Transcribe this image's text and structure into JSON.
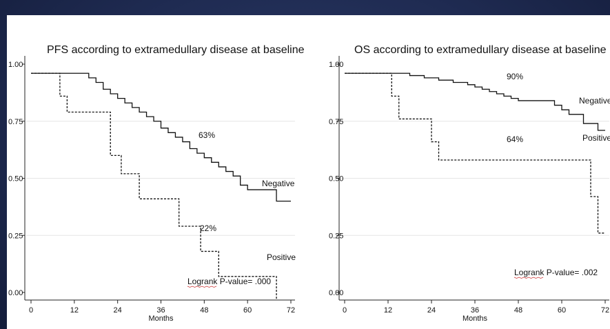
{
  "chart_data": [
    {
      "type": "line",
      "title": "PFS according to extramedullary disease at baseline",
      "xlabel": "Months",
      "ylabel": "",
      "xlim": [
        0,
        72
      ],
      "ylim": [
        0,
        1
      ],
      "x_ticks": [
        0,
        12,
        24,
        36,
        48,
        60,
        72
      ],
      "y_ticks": [
        "0.00",
        "0.25",
        "0.50",
        "0.75",
        "1.00"
      ],
      "series": [
        {
          "name": "Negative",
          "style": "solid",
          "points": [
            [
              0,
              0.96
            ],
            [
              15,
              0.96
            ],
            [
              16,
              0.94
            ],
            [
              18,
              0.92
            ],
            [
              20,
              0.89
            ],
            [
              22,
              0.87
            ],
            [
              24,
              0.85
            ],
            [
              26,
              0.83
            ],
            [
              28,
              0.81
            ],
            [
              30,
              0.79
            ],
            [
              32,
              0.77
            ],
            [
              34,
              0.75
            ],
            [
              36,
              0.72
            ],
            [
              38,
              0.7
            ],
            [
              40,
              0.68
            ],
            [
              42,
              0.66
            ],
            [
              44,
              0.63
            ],
            [
              46,
              0.61
            ],
            [
              48,
              0.59
            ],
            [
              50,
              0.57
            ],
            [
              52,
              0.55
            ],
            [
              54,
              0.53
            ],
            [
              56,
              0.51
            ],
            [
              58,
              0.47
            ],
            [
              60,
              0.45
            ],
            [
              66,
              0.45
            ],
            [
              68,
              0.4
            ],
            [
              72,
              0.4
            ]
          ],
          "annotation": "63%"
        },
        {
          "name": "Positive",
          "style": "dashed",
          "points": [
            [
              0,
              0.96
            ],
            [
              8,
              0.96
            ],
            [
              8,
              0.86
            ],
            [
              10,
              0.86
            ],
            [
              10,
              0.79
            ],
            [
              22,
              0.79
            ],
            [
              22,
              0.6
            ],
            [
              25,
              0.6
            ],
            [
              25,
              0.52
            ],
            [
              30,
              0.52
            ],
            [
              30,
              0.41
            ],
            [
              41,
              0.41
            ],
            [
              41,
              0.29
            ],
            [
              47,
              0.29
            ],
            [
              47,
              0.18
            ],
            [
              52,
              0.18
            ],
            [
              52,
              0.07
            ],
            [
              68,
              0.07
            ],
            [
              68,
              -0.03
            ]
          ],
          "annotation": "22%"
        }
      ],
      "logrank": "Logrank P-value= .000"
    },
    {
      "type": "line",
      "title": "OS according to extramedullary disease at baseline",
      "xlabel": "Months",
      "ylabel": "",
      "xlim": [
        0,
        72
      ],
      "ylim": [
        0,
        1
      ],
      "x_ticks": [
        0,
        12,
        24,
        36,
        48,
        60,
        72
      ],
      "y_ticks": [
        "0.00",
        "0.25",
        "0.50",
        "0.75",
        "1.00"
      ],
      "series": [
        {
          "name": "Negative",
          "style": "solid",
          "points": [
            [
              0,
              0.96
            ],
            [
              14,
              0.96
            ],
            [
              18,
              0.95
            ],
            [
              22,
              0.94
            ],
            [
              26,
              0.93
            ],
            [
              30,
              0.92
            ],
            [
              34,
              0.91
            ],
            [
              36,
              0.9
            ],
            [
              38,
              0.89
            ],
            [
              40,
              0.88
            ],
            [
              42,
              0.87
            ],
            [
              44,
              0.86
            ],
            [
              46,
              0.85
            ],
            [
              48,
              0.84
            ],
            [
              56,
              0.84
            ],
            [
              58,
              0.82
            ],
            [
              60,
              0.8
            ],
            [
              62,
              0.78
            ],
            [
              66,
              0.74
            ],
            [
              70,
              0.71
            ],
            [
              72,
              0.71
            ]
          ],
          "annotation": "90%"
        },
        {
          "name": "Positive",
          "style": "dashed",
          "points": [
            [
              0,
              0.96
            ],
            [
              13,
              0.96
            ],
            [
              13,
              0.86
            ],
            [
              15,
              0.86
            ],
            [
              15,
              0.76
            ],
            [
              24,
              0.76
            ],
            [
              24,
              0.66
            ],
            [
              26,
              0.66
            ],
            [
              26,
              0.58
            ],
            [
              68,
              0.58
            ],
            [
              68,
              0.42
            ],
            [
              70,
              0.42
            ],
            [
              70,
              0.26
            ],
            [
              72,
              0.26
            ]
          ],
          "annotation": "64%"
        }
      ],
      "logrank": "Logrank P-value= .002"
    }
  ]
}
